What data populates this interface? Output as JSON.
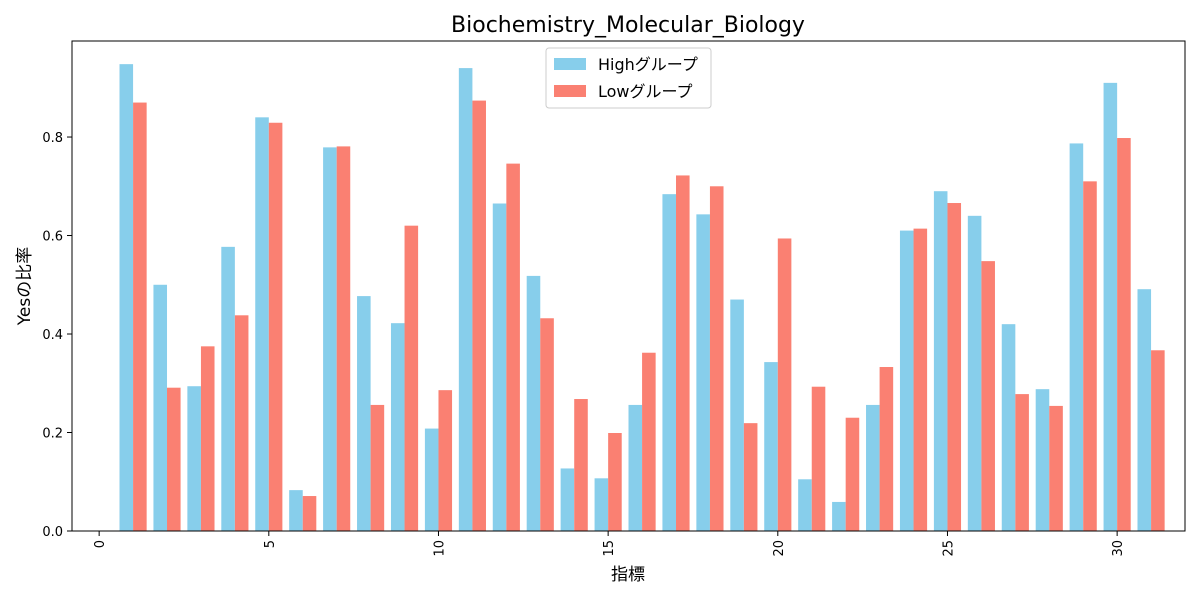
{
  "chart_data": {
    "type": "bar",
    "title": "Biochemistry_Molecular_Biology",
    "xlabel": "指標",
    "ylabel": "Yesの比率",
    "x": [
      1,
      2,
      3,
      4,
      5,
      6,
      7,
      8,
      9,
      10,
      11,
      12,
      13,
      14,
      15,
      16,
      17,
      18,
      19,
      20,
      21,
      22,
      23,
      24,
      25,
      26,
      27,
      28,
      29,
      30,
      31
    ],
    "series": [
      {
        "name": "Highグループ",
        "color": "#87ceeb",
        "values": [
          0.948,
          0.5,
          0.294,
          0.577,
          0.84,
          0.083,
          0.779,
          0.477,
          0.422,
          0.208,
          0.94,
          0.665,
          0.518,
          0.127,
          0.107,
          0.256,
          0.684,
          0.643,
          0.47,
          0.343,
          0.105,
          0.059,
          0.256,
          0.61,
          0.69,
          0.64,
          0.42,
          0.288,
          0.787,
          0.91,
          0.491
        ]
      },
      {
        "name": "Lowグループ",
        "color": "#fa8072",
        "values": [
          0.87,
          0.291,
          0.375,
          0.438,
          0.829,
          0.071,
          0.781,
          0.256,
          0.62,
          0.286,
          0.874,
          0.746,
          0.432,
          0.268,
          0.199,
          0.362,
          0.722,
          0.7,
          0.219,
          0.594,
          0.293,
          0.23,
          0.333,
          0.614,
          0.666,
          0.548,
          0.278,
          0.254,
          0.71,
          0.798,
          0.367
        ]
      }
    ],
    "xticks": [
      0,
      5,
      10,
      15,
      20,
      25,
      30
    ],
    "xtick_labels": [
      "0",
      "5",
      "10",
      "15",
      "20",
      "25",
      "30"
    ],
    "yticks": [
      0.0,
      0.2,
      0.4,
      0.6,
      0.8
    ],
    "ytick_labels": [
      "0.0",
      "0.2",
      "0.4",
      "0.6",
      "0.8"
    ],
    "xlim": [
      -0.8,
      32.0
    ],
    "ylim": [
      0.0,
      0.995
    ],
    "grid": false,
    "legend_position": "top-center"
  }
}
